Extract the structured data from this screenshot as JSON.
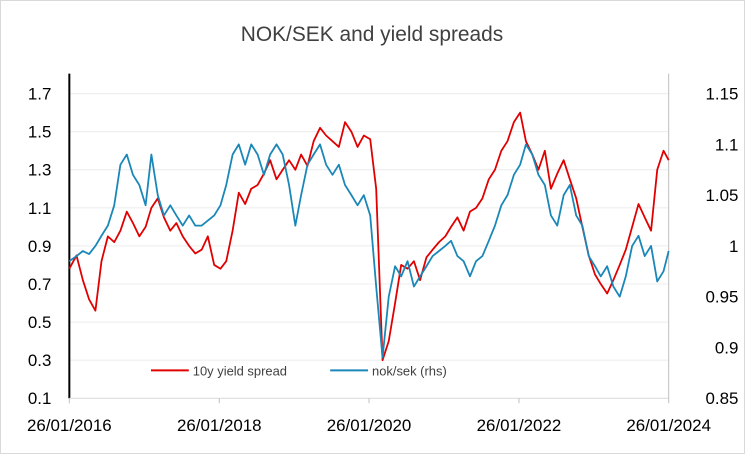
{
  "chart_data": {
    "type": "line",
    "title": "NOK/SEK and yield spreads",
    "x_ticks": [
      "26/01/2016",
      "26/01/2018",
      "26/01/2020",
      "26/01/2022",
      "26/01/2024"
    ],
    "x_range": [
      "2016-01-26",
      "2024-01-26"
    ],
    "left_axis": {
      "ylim": [
        0.1,
        1.7
      ],
      "ticks": [
        "0.1",
        "0.3",
        "0.5",
        "0.7",
        "0.9",
        "1.1",
        "1.3",
        "1.5",
        "1.7"
      ]
    },
    "right_axis": {
      "ylim": [
        0.85,
        1.15
      ],
      "ticks": [
        "0.85",
        "0.9",
        "0.95",
        "1",
        "1.05",
        "1.1",
        "1.15"
      ]
    },
    "grid": true,
    "legend_position": "bottom-center",
    "series": [
      {
        "name": "10y yield spread",
        "axis": "left",
        "color": "#e00000",
        "points": [
          [
            "2016-01-26",
            0.78
          ],
          [
            "2016-03-01",
            0.85
          ],
          [
            "2016-04-01",
            0.72
          ],
          [
            "2016-05-01",
            0.62
          ],
          [
            "2016-06-01",
            0.56
          ],
          [
            "2016-07-01",
            0.82
          ],
          [
            "2016-08-01",
            0.95
          ],
          [
            "2016-09-01",
            0.92
          ],
          [
            "2016-10-01",
            0.98
          ],
          [
            "2016-11-01",
            1.08
          ],
          [
            "2016-12-01",
            1.02
          ],
          [
            "2017-01-01",
            0.95
          ],
          [
            "2017-02-01",
            1.0
          ],
          [
            "2017-03-01",
            1.1
          ],
          [
            "2017-04-01",
            1.15
          ],
          [
            "2017-05-01",
            1.05
          ],
          [
            "2017-06-01",
            0.98
          ],
          [
            "2017-07-01",
            1.02
          ],
          [
            "2017-08-01",
            0.95
          ],
          [
            "2017-09-01",
            0.9
          ],
          [
            "2017-10-01",
            0.86
          ],
          [
            "2017-11-01",
            0.88
          ],
          [
            "2017-12-01",
            0.95
          ],
          [
            "2018-01-01",
            0.8
          ],
          [
            "2018-02-01",
            0.78
          ],
          [
            "2018-03-01",
            0.82
          ],
          [
            "2018-04-01",
            0.98
          ],
          [
            "2018-05-01",
            1.18
          ],
          [
            "2018-06-01",
            1.12
          ],
          [
            "2018-07-01",
            1.2
          ],
          [
            "2018-08-01",
            1.22
          ],
          [
            "2018-09-01",
            1.28
          ],
          [
            "2018-10-01",
            1.35
          ],
          [
            "2018-11-01",
            1.25
          ],
          [
            "2018-12-01",
            1.3
          ],
          [
            "2019-01-01",
            1.35
          ],
          [
            "2019-02-01",
            1.3
          ],
          [
            "2019-03-01",
            1.38
          ],
          [
            "2019-04-01",
            1.32
          ],
          [
            "2019-05-01",
            1.45
          ],
          [
            "2019-06-01",
            1.52
          ],
          [
            "2019-07-01",
            1.48
          ],
          [
            "2019-08-01",
            1.45
          ],
          [
            "2019-09-01",
            1.42
          ],
          [
            "2019-10-01",
            1.55
          ],
          [
            "2019-11-01",
            1.5
          ],
          [
            "2019-12-01",
            1.42
          ],
          [
            "2020-01-01",
            1.48
          ],
          [
            "2020-02-01",
            1.46
          ],
          [
            "2020-03-01",
            1.2
          ],
          [
            "2020-04-01",
            0.3
          ],
          [
            "2020-05-01",
            0.4
          ],
          [
            "2020-06-01",
            0.6
          ],
          [
            "2020-07-01",
            0.8
          ],
          [
            "2020-08-01",
            0.78
          ],
          [
            "2020-09-01",
            0.82
          ],
          [
            "2020-10-01",
            0.72
          ],
          [
            "2020-11-01",
            0.84
          ],
          [
            "2020-12-01",
            0.88
          ],
          [
            "2021-01-01",
            0.92
          ],
          [
            "2021-02-01",
            0.95
          ],
          [
            "2021-03-01",
            1.0
          ],
          [
            "2021-04-01",
            1.05
          ],
          [
            "2021-05-01",
            0.98
          ],
          [
            "2021-06-01",
            1.08
          ],
          [
            "2021-07-01",
            1.1
          ],
          [
            "2021-08-01",
            1.15
          ],
          [
            "2021-09-01",
            1.25
          ],
          [
            "2021-10-01",
            1.3
          ],
          [
            "2021-11-01",
            1.4
          ],
          [
            "2021-12-01",
            1.45
          ],
          [
            "2022-01-01",
            1.55
          ],
          [
            "2022-02-01",
            1.6
          ],
          [
            "2022-03-01",
            1.45
          ],
          [
            "2022-04-01",
            1.38
          ],
          [
            "2022-05-01",
            1.3
          ],
          [
            "2022-06-01",
            1.4
          ],
          [
            "2022-07-01",
            1.2
          ],
          [
            "2022-08-01",
            1.28
          ],
          [
            "2022-09-01",
            1.35
          ],
          [
            "2022-10-01",
            1.25
          ],
          [
            "2022-11-01",
            1.15
          ],
          [
            "2022-12-01",
            1.0
          ],
          [
            "2023-01-01",
            0.85
          ],
          [
            "2023-02-01",
            0.75
          ],
          [
            "2023-03-01",
            0.7
          ],
          [
            "2023-04-01",
            0.65
          ],
          [
            "2023-05-01",
            0.72
          ],
          [
            "2023-06-01",
            0.8
          ],
          [
            "2023-07-01",
            0.88
          ],
          [
            "2023-08-01",
            1.0
          ],
          [
            "2023-09-01",
            1.12
          ],
          [
            "2023-10-01",
            1.05
          ],
          [
            "2023-11-01",
            0.98
          ],
          [
            "2023-12-01",
            1.3
          ],
          [
            "2024-01-01",
            1.4
          ],
          [
            "2024-01-26",
            1.35
          ]
        ]
      },
      {
        "name": "nok/sek (rhs)",
        "axis": "right",
        "color": "#1a87b8",
        "points": [
          [
            "2016-01-26",
            0.985
          ],
          [
            "2016-03-01",
            0.99
          ],
          [
            "2016-04-01",
            0.995
          ],
          [
            "2016-05-01",
            0.992
          ],
          [
            "2016-06-01",
            1.0
          ],
          [
            "2016-07-01",
            1.01
          ],
          [
            "2016-08-01",
            1.02
          ],
          [
            "2016-09-01",
            1.04
          ],
          [
            "2016-10-01",
            1.08
          ],
          [
            "2016-11-01",
            1.09
          ],
          [
            "2016-12-01",
            1.07
          ],
          [
            "2017-01-01",
            1.06
          ],
          [
            "2017-02-01",
            1.04
          ],
          [
            "2017-03-01",
            1.09
          ],
          [
            "2017-04-01",
            1.05
          ],
          [
            "2017-05-01",
            1.03
          ],
          [
            "2017-06-01",
            1.04
          ],
          [
            "2017-07-01",
            1.03
          ],
          [
            "2017-08-01",
            1.02
          ],
          [
            "2017-09-01",
            1.03
          ],
          [
            "2017-10-01",
            1.02
          ],
          [
            "2017-11-01",
            1.02
          ],
          [
            "2017-12-01",
            1.025
          ],
          [
            "2018-01-01",
            1.03
          ],
          [
            "2018-02-01",
            1.04
          ],
          [
            "2018-03-01",
            1.06
          ],
          [
            "2018-04-01",
            1.09
          ],
          [
            "2018-05-01",
            1.1
          ],
          [
            "2018-06-01",
            1.08
          ],
          [
            "2018-07-01",
            1.1
          ],
          [
            "2018-08-01",
            1.09
          ],
          [
            "2018-09-01",
            1.07
          ],
          [
            "2018-10-01",
            1.09
          ],
          [
            "2018-11-01",
            1.1
          ],
          [
            "2018-12-01",
            1.09
          ],
          [
            "2019-01-01",
            1.06
          ],
          [
            "2019-02-01",
            1.02
          ],
          [
            "2019-03-01",
            1.05
          ],
          [
            "2019-04-01",
            1.08
          ],
          [
            "2019-05-01",
            1.09
          ],
          [
            "2019-06-01",
            1.1
          ],
          [
            "2019-07-01",
            1.08
          ],
          [
            "2019-08-01",
            1.07
          ],
          [
            "2019-09-01",
            1.08
          ],
          [
            "2019-10-01",
            1.06
          ],
          [
            "2019-11-01",
            1.05
          ],
          [
            "2019-12-01",
            1.04
          ],
          [
            "2020-01-01",
            1.05
          ],
          [
            "2020-02-01",
            1.03
          ],
          [
            "2020-03-01",
            0.96
          ],
          [
            "2020-04-01",
            0.89
          ],
          [
            "2020-05-01",
            0.95
          ],
          [
            "2020-06-01",
            0.98
          ],
          [
            "2020-07-01",
            0.97
          ],
          [
            "2020-08-01",
            0.985
          ],
          [
            "2020-09-01",
            0.96
          ],
          [
            "2020-10-01",
            0.97
          ],
          [
            "2020-11-01",
            0.98
          ],
          [
            "2020-12-01",
            0.99
          ],
          [
            "2021-01-01",
            0.995
          ],
          [
            "2021-02-01",
            1.0
          ],
          [
            "2021-03-01",
            1.005
          ],
          [
            "2021-04-01",
            0.99
          ],
          [
            "2021-05-01",
            0.985
          ],
          [
            "2021-06-01",
            0.97
          ],
          [
            "2021-07-01",
            0.985
          ],
          [
            "2021-08-01",
            0.99
          ],
          [
            "2021-09-01",
            1.005
          ],
          [
            "2021-10-01",
            1.02
          ],
          [
            "2021-11-01",
            1.04
          ],
          [
            "2021-12-01",
            1.05
          ],
          [
            "2022-01-01",
            1.07
          ],
          [
            "2022-02-01",
            1.08
          ],
          [
            "2022-03-01",
            1.1
          ],
          [
            "2022-04-01",
            1.09
          ],
          [
            "2022-05-01",
            1.07
          ],
          [
            "2022-06-01",
            1.06
          ],
          [
            "2022-07-01",
            1.03
          ],
          [
            "2022-08-01",
            1.02
          ],
          [
            "2022-09-01",
            1.05
          ],
          [
            "2022-10-01",
            1.06
          ],
          [
            "2022-11-01",
            1.03
          ],
          [
            "2022-12-01",
            1.02
          ],
          [
            "2023-01-01",
            0.99
          ],
          [
            "2023-02-01",
            0.98
          ],
          [
            "2023-03-01",
            0.97
          ],
          [
            "2023-04-01",
            0.98
          ],
          [
            "2023-05-01",
            0.96
          ],
          [
            "2023-06-01",
            0.95
          ],
          [
            "2023-07-01",
            0.97
          ],
          [
            "2023-08-01",
            1.0
          ],
          [
            "2023-09-01",
            1.01
          ],
          [
            "2023-10-01",
            0.99
          ],
          [
            "2023-11-01",
            1.0
          ],
          [
            "2023-12-01",
            0.965
          ],
          [
            "2024-01-01",
            0.975
          ],
          [
            "2024-01-26",
            0.995
          ]
        ]
      }
    ]
  }
}
